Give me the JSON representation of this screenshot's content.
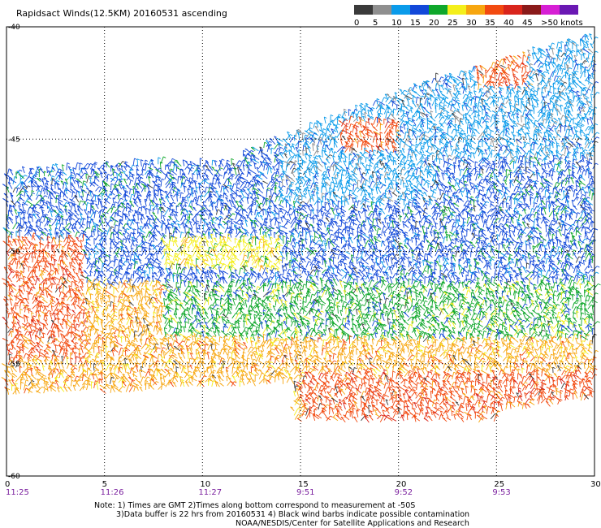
{
  "title": "Rapidsact Winds(12.5KM) 20160531 ascending",
  "legend": {
    "bins": [
      {
        "label": "0",
        "color": "#3a3a3a"
      },
      {
        "label": "5",
        "color": "#8f8f8f"
      },
      {
        "label": "10",
        "color": "#0a9bea"
      },
      {
        "label": "15",
        "color": "#1248d9"
      },
      {
        "label": "20",
        "color": "#0fa72b"
      },
      {
        "label": "25",
        "color": "#f4ef1b"
      },
      {
        "label": "30",
        "color": "#f7a60f"
      },
      {
        "label": "35",
        "color": "#f24a10"
      },
      {
        "label": "40",
        "color": "#d9251c"
      },
      {
        "label": "45",
        "color": "#8a1a1a"
      },
      {
        "label": ">50 knots",
        "color": "#d61fd4"
      }
    ],
    "extra_color": "#6a18b3"
  },
  "axes": {
    "x_ticks": [
      "0",
      "5",
      "10",
      "15",
      "20",
      "25",
      "30"
    ],
    "y_ticks": [
      "-40",
      "-45",
      "-50",
      "-55",
      "-60"
    ],
    "time_labels": [
      "11:25",
      "11:26",
      "11:27",
      "9:51",
      "9:52",
      "9:53"
    ],
    "x_range": [
      0,
      30
    ],
    "y_range": [
      -40,
      -60
    ]
  },
  "notes": [
    "Note: 1) Times are GMT 2)Times along bottom correspond to measurement at -50S",
    "3)Data buffer is 22 hrs from 20160531 4) Black wind barbs indicate possible contamination",
    "NOAA/NESDIS/Center for Satellite Applications and Research"
  ],
  "colors": {
    "time_label": "#7a1f9e",
    "grid": "#000000"
  }
}
